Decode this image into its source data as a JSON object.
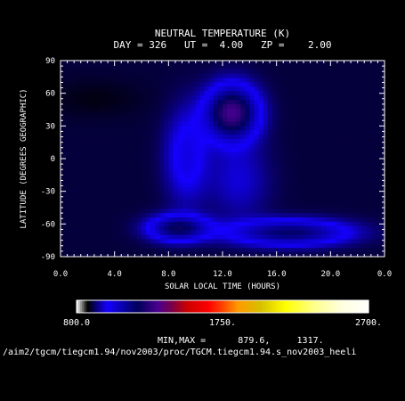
{
  "figure": {
    "title": "NEUTRAL TEMPERATURE (K)",
    "subtitle": "DAY = 326   UT =  4.00   ZP =    2.00",
    "minmax_text": "MIN,MAX =      879.6,     1317.",
    "path_text": "/aim2/tgcm/tiegcm1.94/nov2003/proc/TGCM.tiegcm1.94.s_nov2003_heeli"
  },
  "chart_data": {
    "type": "heatmap",
    "title": "NEUTRAL TEMPERATURE (K)",
    "xlabel": "SOLAR LOCAL TIME (HOURS)",
    "ylabel": "LATITUDE (DEGREES GEOGRAPHIC)",
    "xlim": [
      0,
      24
    ],
    "ylim": [
      -90,
      90
    ],
    "x_tick_labels": [
      "0.0",
      "4.0",
      "8.0",
      "12.0",
      "16.0",
      "20.0",
      "0.0"
    ],
    "y_tick_labels": [
      "90",
      "60",
      "30",
      "0",
      "-30",
      "-60",
      "-90"
    ],
    "y_tick_values": [
      90,
      60,
      30,
      0,
      -30,
      -60,
      -90
    ],
    "value_range": [
      879.6,
      1317
    ],
    "background_value": 900,
    "features": [
      {
        "x": 12.7,
        "y": 42,
        "sx": 1.3,
        "sy": 17,
        "value": 1317
      },
      {
        "x": 9.3,
        "y": 2,
        "sx": 1.1,
        "sy": 30,
        "value": 1030
      },
      {
        "x": 13.2,
        "y": -20,
        "sx": 1.6,
        "sy": 25,
        "value": 980
      },
      {
        "x": 8.7,
        "y": -64,
        "sx": 1.5,
        "sy": 8,
        "value": 1200
      },
      {
        "x": 17.0,
        "y": -68,
        "sx": 3.0,
        "sy": 8,
        "value": 1180
      },
      {
        "x": 2.5,
        "y": 55,
        "sx": 2.5,
        "sy": 12,
        "value": 879.6
      }
    ],
    "colorbar": {
      "range": [
        800,
        2700
      ],
      "labels": [
        "800.0",
        "1750.",
        "2700."
      ],
      "label_values": [
        800,
        1750,
        2700
      ],
      "stops": [
        {
          "value": 800,
          "color": "#ffffff"
        },
        {
          "value": 870,
          "color": "#000000"
        },
        {
          "value": 1000,
          "color": "#1400ff"
        },
        {
          "value": 1200,
          "color": "#00005a"
        },
        {
          "value": 1330,
          "color": "#4a0090"
        },
        {
          "value": 1420,
          "color": "#7a0048"
        },
        {
          "value": 1520,
          "color": "#cc0000"
        },
        {
          "value": 1660,
          "color": "#ff0000"
        },
        {
          "value": 1745,
          "color": "#ff4000"
        },
        {
          "value": 1850,
          "color": "#ff9a00"
        },
        {
          "value": 2000,
          "color": "#d8c000"
        },
        {
          "value": 2160,
          "color": "#ffff00"
        },
        {
          "value": 2350,
          "color": "#ffff8c"
        },
        {
          "value": 2520,
          "color": "#ffffdc"
        },
        {
          "value": 2700,
          "color": "#ffffff"
        }
      ]
    }
  }
}
